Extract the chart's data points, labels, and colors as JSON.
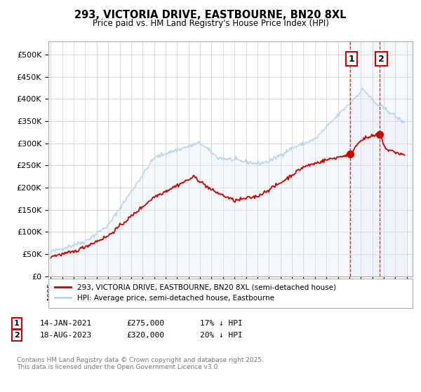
{
  "title": "293, VICTORIA DRIVE, EASTBOURNE, BN20 8XL",
  "subtitle": "Price paid vs. HM Land Registry's House Price Index (HPI)",
  "yticks": [
    0,
    50000,
    100000,
    150000,
    200000,
    250000,
    300000,
    350000,
    400000,
    450000,
    500000
  ],
  "ytick_labels": [
    "£0",
    "£50K",
    "£100K",
    "£150K",
    "£200K",
    "£250K",
    "£300K",
    "£350K",
    "£400K",
    "£450K",
    "£500K"
  ],
  "xlim_start": 1994.8,
  "xlim_end": 2026.5,
  "ylim": [
    0,
    530000
  ],
  "hpi_color": "#b8d0e8",
  "hpi_fill_color": "#dce9f5",
  "price_color": "#cc0000",
  "sale1_x": 2021.04,
  "sale1_y": 275000,
  "sale2_x": 2023.63,
  "sale2_y": 320000,
  "legend_price_label": "293, VICTORIA DRIVE, EASTBOURNE, BN20 8XL (semi-detached house)",
  "legend_hpi_label": "HPI: Average price, semi-detached house, Eastbourne",
  "table_row1": [
    "1",
    "14-JAN-2021",
    "£275,000",
    "17% ↓ HPI"
  ],
  "table_row2": [
    "2",
    "18-AUG-2023",
    "£320,000",
    "20% ↓ HPI"
  ],
  "footer": "Contains HM Land Registry data © Crown copyright and database right 2025.\nThis data is licensed under the Open Government Licence v3.0.",
  "bg_color": "#ffffff",
  "grid_color": "#cccccc"
}
